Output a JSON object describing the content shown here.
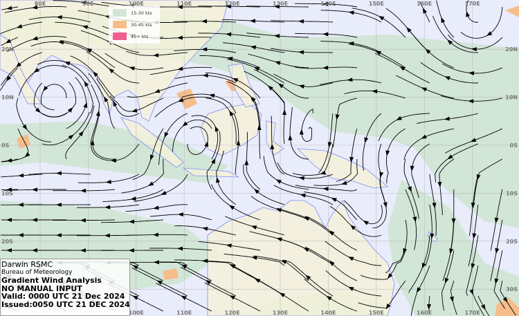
{
  "map": {
    "type": "streamline wind analysis",
    "longitude_labels_top": [
      "80E",
      "90E",
      "100E",
      "110E",
      "120E",
      "130E",
      "140E",
      "150E",
      "160E",
      "170E"
    ],
    "longitude_labels_bottom": [
      "100E",
      "110E",
      "120E",
      "130E",
      "140E",
      "150E",
      "160E",
      "170E"
    ],
    "latitude_labels_left": [
      "20N",
      "10N",
      "0S",
      "10S",
      "20S"
    ],
    "latitude_labels_right": [
      "20N",
      "10N",
      "0S",
      "10S",
      "20S",
      "30S"
    ],
    "colors": {
      "ocean": "#e9ecfb",
      "land": "#f4f1da",
      "coast": "#7f8cf5",
      "band_15_30": "#d2e6d8",
      "band_30_45": "#f6bd8a",
      "band_45_plus": "#f0608f",
      "streamline": "#000000"
    }
  },
  "legend": {
    "items": [
      {
        "label": "15-30 kts",
        "color": "#d2e6d8"
      },
      {
        "label": "30-45 kts",
        "color": "#f6bd8a"
      },
      {
        "label": "45+ kts",
        "color": "#f0608f"
      }
    ]
  },
  "info": {
    "office": "Darwin RSMC",
    "agency": "Bureau of Meteorology",
    "product": "Gradient Wind Analysis",
    "note": "NO MANUAL INPUT",
    "valid": "Valid:   0000 UTC 21 Dec 2024",
    "issued": "Issued:0050 UTC 21 DEC 2024"
  }
}
